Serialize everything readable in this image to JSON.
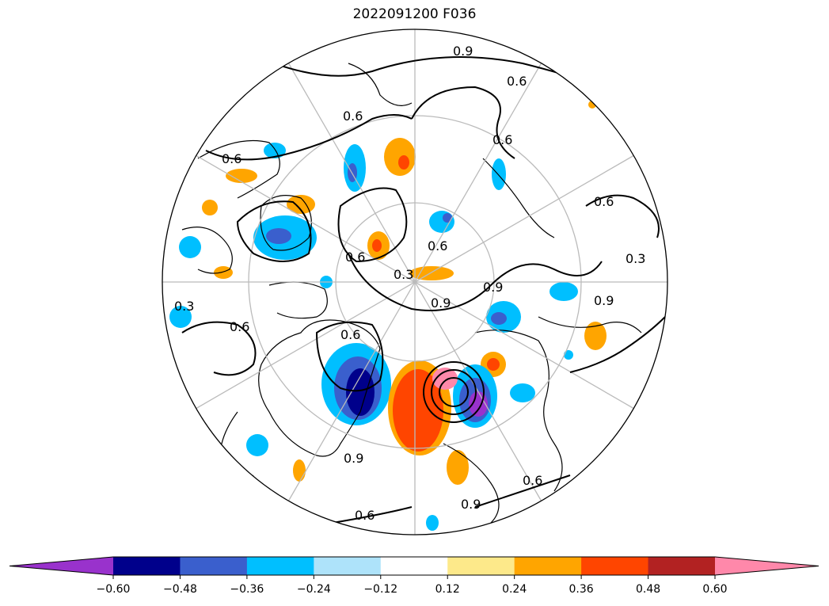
{
  "title": "2022091200 F036",
  "chart_data": {
    "type": "heatmap",
    "title": "2022091200 F036",
    "projection": "north-polar-stereographic",
    "fill_levels": [
      -0.6,
      -0.48,
      -0.36,
      -0.24,
      -0.12,
      0.12,
      0.24,
      0.36,
      0.48,
      0.6
    ],
    "extend": "both",
    "colors": [
      "#9932cc",
      "#00008b",
      "#3a5fcd",
      "#00bfff",
      "#aee3fa",
      "#ffffff",
      "#fde98a",
      "#ffa500",
      "#ff4500",
      "#b22222",
      "#ff88aa"
    ],
    "colorbar_ticks": [
      "−0.60",
      "−0.48",
      "−0.36",
      "−0.24",
      "−0.12",
      "0.12",
      "0.24",
      "0.36",
      "0.48",
      "0.60"
    ],
    "contour_labels": [
      "0.9",
      "0.6",
      "0.6",
      "0.6",
      "0.6",
      "0.6",
      "0.3",
      "0.6",
      "0.6",
      "0.3",
      "0.9",
      "0.9",
      "0.6",
      "0.9",
      "0.6",
      "0.9",
      "0.3",
      "0.9",
      "0.6",
      "0.6"
    ],
    "grid": true
  }
}
